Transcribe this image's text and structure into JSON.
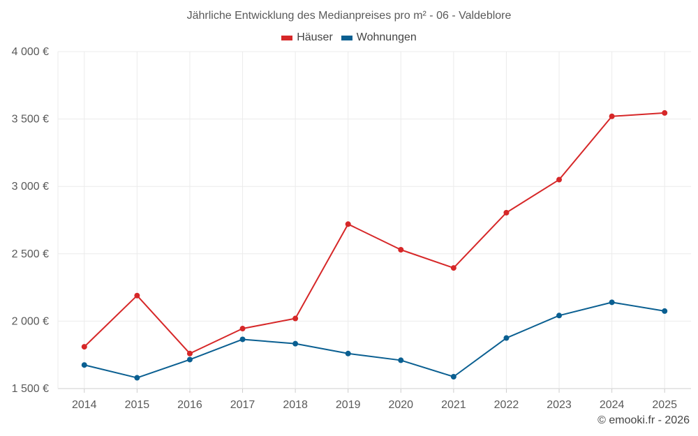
{
  "chart_data": {
    "type": "line",
    "title": "Jährliche Entwicklung des Medianpreises pro m² - 06 - Valdeblore",
    "categories": [
      "2014",
      "2015",
      "2016",
      "2017",
      "2018",
      "2019",
      "2020",
      "2021",
      "2022",
      "2023",
      "2024",
      "2025"
    ],
    "series": [
      {
        "name": "Häuser",
        "color": "#d62728",
        "values": [
          1810,
          2190,
          1760,
          1945,
          2020,
          2720,
          2530,
          2395,
          2805,
          3050,
          3520,
          3545
        ]
      },
      {
        "name": "Wohnungen",
        "color": "#0a5f91",
        "values": [
          1675,
          1580,
          1715,
          1865,
          1833,
          1760,
          1710,
          1588,
          1875,
          2042,
          2140,
          2075
        ]
      }
    ],
    "ylim": [
      1500,
      4000
    ],
    "yticks": [
      1500,
      2000,
      2500,
      3000,
      3500,
      4000
    ],
    "ytick_labels": [
      "1 500 €",
      "2 000 €",
      "2 500 €",
      "3 000 €",
      "3 500 €",
      "4 000 €"
    ],
    "xlabel": "",
    "ylabel": "",
    "grid": true,
    "legend_position": "top-center"
  },
  "credit": "© emooki.fr - 2026"
}
